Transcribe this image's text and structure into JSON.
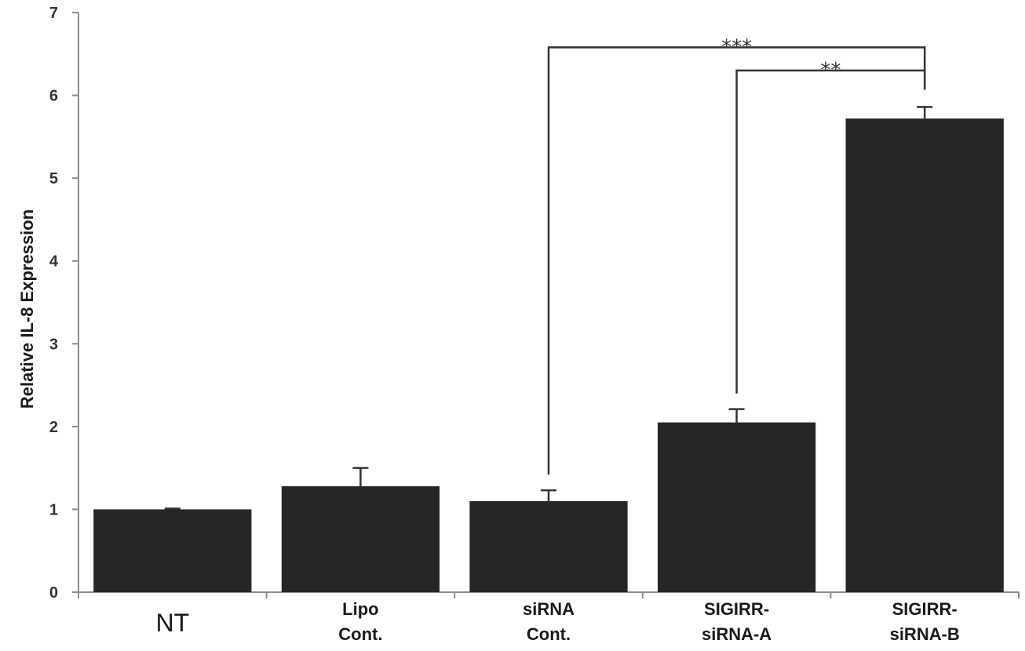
{
  "chart_data": {
    "type": "bar",
    "title": "",
    "xlabel": "",
    "ylabel": "Relative IL-8 Expression",
    "ylim": [
      0,
      7
    ],
    "yticks": [
      0,
      1,
      2,
      3,
      4,
      5,
      6,
      7
    ],
    "grid": false,
    "categories": [
      {
        "lines": [
          "NT"
        ]
      },
      {
        "lines": [
          "Lipo",
          "Cont."
        ]
      },
      {
        "lines": [
          "siRNA",
          "Cont."
        ]
      },
      {
        "lines": [
          "SIGIRR-",
          "siRNA-A"
        ]
      },
      {
        "lines": [
          "SIGIRR-",
          "siRNA-B"
        ]
      }
    ],
    "values": [
      1.0,
      1.28,
      1.1,
      2.05,
      5.72
    ],
    "errors": [
      0.01,
      0.22,
      0.13,
      0.16,
      0.14
    ],
    "bar_color": "#262626",
    "significance": [
      {
        "from": 2,
        "to": 4,
        "label": "***",
        "y": 6.58
      },
      {
        "from": 3,
        "to": 4,
        "label": "**",
        "y": 6.3
      }
    ]
  }
}
